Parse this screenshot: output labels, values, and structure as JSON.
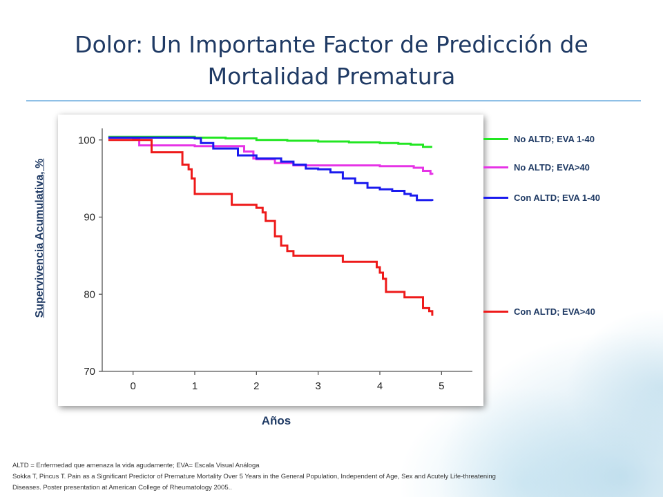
{
  "slide": {
    "title_line1": "Dolor: Un Importante Factor de Predicción de",
    "title_line2": "Mortalidad Prematura",
    "footnote_line1": "ALTD = Enfermedad que amenaza la vida agudamente; EVA= Escala Visual Análoga",
    "footnote_line2": "Sokka T, Pincus T. Pain as a Significant Predictor of Premature Mortality Over 5 Years in the General Population, Independent of Age, Sex and Acutely Life-threatening",
    "footnote_line3": "Diseases. Poster presentation at American College of Rheumatology 2005.."
  },
  "chart_data": {
    "type": "line",
    "title": "",
    "xlabel": "Años",
    "ylabel": "Supervivencia Acumulativa, %",
    "xlim": [
      -0.5,
      5.5
    ],
    "ylim": [
      70,
      101.5
    ],
    "x_ticks": [
      "0",
      "1",
      "2",
      "3",
      "4",
      "5"
    ],
    "y_ticks": [
      "100",
      "90",
      "80",
      "70"
    ],
    "grid": false,
    "legend": "right",
    "series": [
      {
        "name": "No ALTD; EVA 1-40",
        "color": "#22e622",
        "x": [
          -0.4,
          0.5,
          1.0,
          1.5,
          2.0,
          2.5,
          3.0,
          3.5,
          4.0,
          4.3,
          4.5,
          4.7,
          4.85
        ],
        "y": [
          100.4,
          100.4,
          100.3,
          100.2,
          100.0,
          99.9,
          99.8,
          99.7,
          99.6,
          99.5,
          99.4,
          99.1,
          99.1
        ]
      },
      {
        "name": "No ALTD;  EVA>40",
        "color": "#e633e6",
        "x": [
          -0.4,
          0.0,
          0.1,
          0.3,
          0.8,
          1.0,
          1.5,
          1.8,
          1.95,
          2.0,
          2.3,
          2.6,
          3.0,
          3.5,
          4.0,
          4.3,
          4.55,
          4.7,
          4.82,
          4.85
        ],
        "y": [
          100.3,
          100.1,
          99.3,
          99.3,
          99.3,
          99.2,
          99.2,
          98.5,
          97.6,
          97.5,
          97.0,
          96.7,
          96.7,
          96.7,
          96.6,
          96.6,
          96.4,
          96.0,
          95.6,
          95.5
        ]
      },
      {
        "name": "Con ALTD; EVA 1-40",
        "color": "#1a1aee",
        "x": [
          -0.4,
          0.5,
          1.0,
          1.1,
          1.3,
          1.6,
          1.7,
          2.0,
          2.2,
          2.4,
          2.6,
          2.8,
          3.0,
          3.2,
          3.4,
          3.6,
          3.8,
          4.0,
          4.2,
          4.4,
          4.5,
          4.6,
          4.85
        ],
        "y": [
          100.3,
          100.3,
          100.2,
          99.6,
          98.9,
          98.9,
          98.0,
          97.6,
          97.6,
          97.2,
          96.8,
          96.3,
          96.2,
          95.8,
          95.0,
          94.4,
          93.8,
          93.6,
          93.4,
          93.0,
          92.8,
          92.2,
          92.1
        ]
      },
      {
        "name": "Con ALTD; EVA>40",
        "color": "#ee1a1a",
        "x": [
          -0.4,
          0.1,
          0.3,
          0.7,
          0.8,
          0.9,
          0.95,
          1.0,
          1.5,
          1.6,
          1.9,
          2.0,
          2.1,
          2.15,
          2.3,
          2.4,
          2.5,
          2.6,
          3.0,
          3.3,
          3.4,
          3.5,
          3.9,
          3.95,
          4.0,
          4.05,
          4.1,
          4.3,
          4.4,
          4.5,
          4.7,
          4.8,
          4.85
        ],
        "y": [
          100.0,
          100.0,
          98.4,
          98.4,
          96.8,
          96.2,
          95.0,
          93.0,
          93.0,
          91.6,
          91.6,
          91.2,
          90.6,
          89.5,
          87.5,
          86.3,
          85.6,
          85.0,
          85.0,
          85.0,
          84.2,
          84.2,
          84.2,
          83.5,
          82.8,
          82.0,
          80.3,
          80.3,
          79.6,
          79.6,
          78.2,
          77.8,
          77.2
        ]
      }
    ]
  }
}
